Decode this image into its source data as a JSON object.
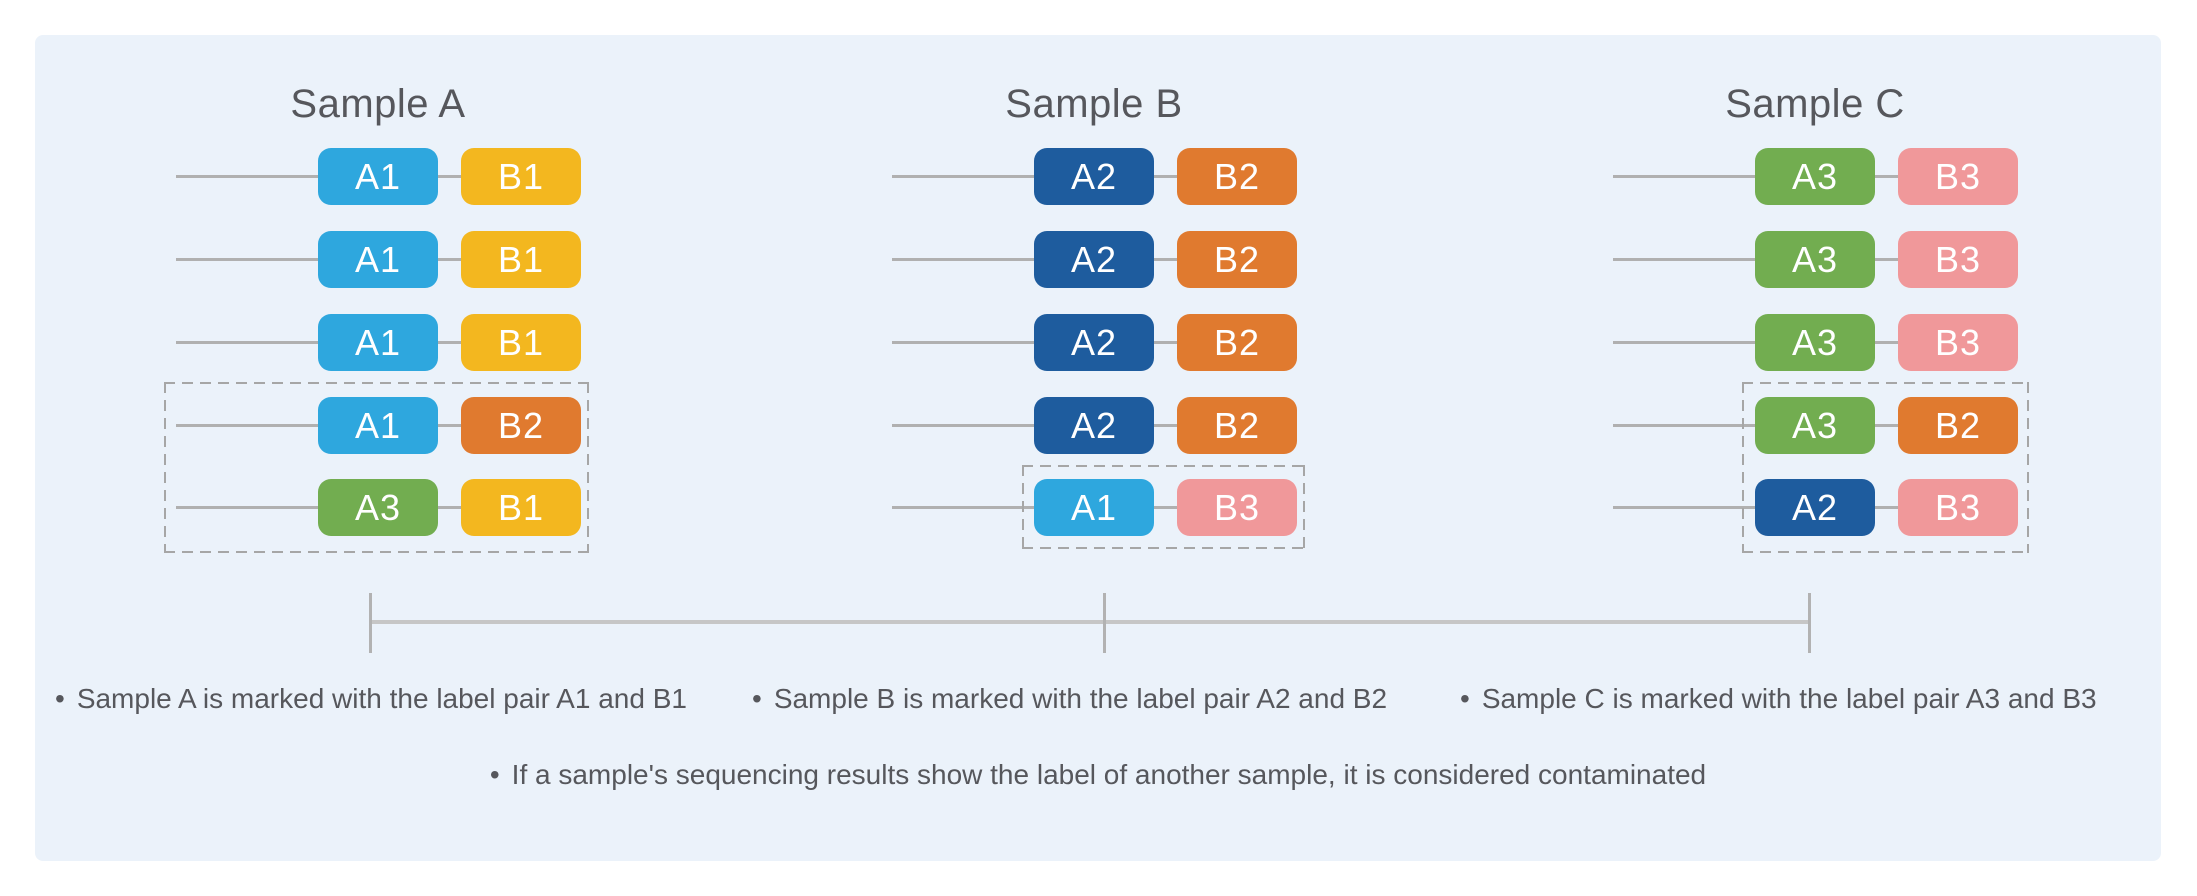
{
  "colors": {
    "panel_background": "#EBF2FA",
    "labels": {
      "A1": "#2EA7DE",
      "A2": "#1E5C9E",
      "A3": "#72AD50",
      "B1": "#F3B71F",
      "B2": "#E07A2F",
      "B3": "#F0989A"
    }
  },
  "bullet": "•",
  "samples": [
    {
      "title": "Sample A",
      "rows": [
        {
          "a": "A1",
          "b": "B1"
        },
        {
          "a": "A1",
          "b": "B1"
        },
        {
          "a": "A1",
          "b": "B1"
        },
        {
          "a": "A1",
          "b": "B2"
        },
        {
          "a": "A3",
          "b": "B1"
        }
      ]
    },
    {
      "title": "Sample B",
      "rows": [
        {
          "a": "A2",
          "b": "B2"
        },
        {
          "a": "A2",
          "b": "B2"
        },
        {
          "a": "A2",
          "b": "B2"
        },
        {
          "a": "A2",
          "b": "B2"
        },
        {
          "a": "A1",
          "b": "B3"
        }
      ]
    },
    {
      "title": "Sample C",
      "rows": [
        {
          "a": "A3",
          "b": "B3"
        },
        {
          "a": "A3",
          "b": "B3"
        },
        {
          "a": "A3",
          "b": "B3"
        },
        {
          "a": "A3",
          "b": "B2"
        },
        {
          "a": "A2",
          "b": "B3"
        }
      ]
    }
  ],
  "notes": {
    "items": [
      "Sample A is marked with the label pair A1 and B1",
      "Sample B is marked with the label pair A2 and B2",
      "Sample C is marked with the label pair A3 and B3"
    ],
    "footnote": "If a sample's sequencing results show the label of another sample, it is considered contaminated"
  }
}
